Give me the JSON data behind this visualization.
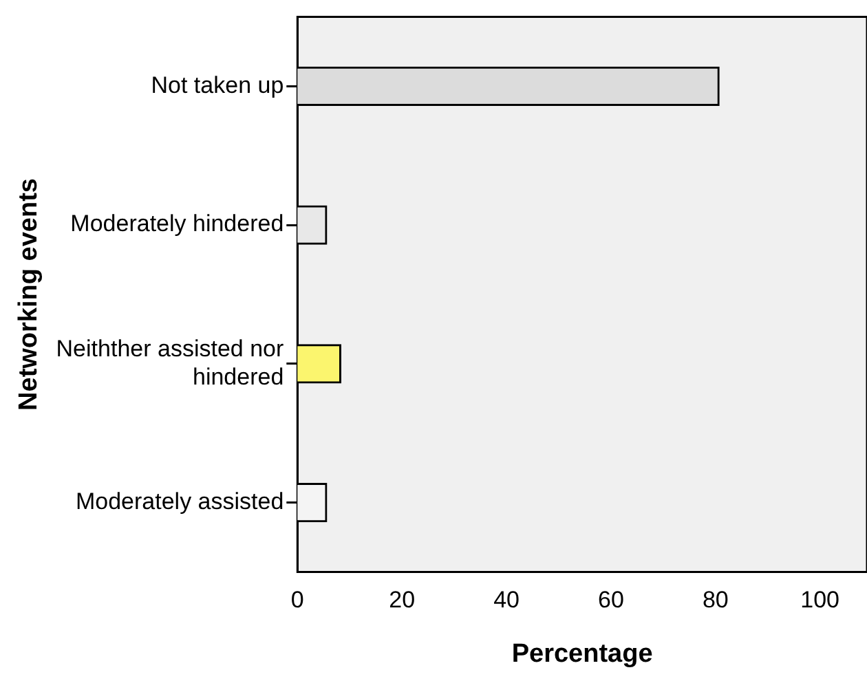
{
  "chart_data": {
    "type": "bar",
    "orientation": "horizontal",
    "xlabel": "Percentage",
    "ylabel": "Networking events",
    "categories": [
      "Not taken up",
      "Moderately hindered",
      "Neithther assisted nor hindered",
      "Moderately assisted"
    ],
    "values": [
      80.7,
      5.6,
      8.3,
      5.6
    ],
    "colors": [
      "#dcdcdc",
      "#e8e8e8",
      "#fbf56e",
      "#f4f4f4"
    ],
    "xlim": [
      0,
      109
    ],
    "xticks": [
      0,
      20,
      40,
      60,
      80,
      100
    ],
    "grid": false,
    "legend": false
  }
}
